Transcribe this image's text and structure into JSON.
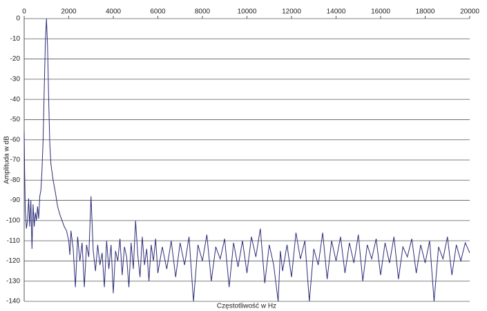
{
  "chart_data": {
    "type": "line",
    "x_label": "Częstotliwość w Hz",
    "y_label": "Amplituda w dB",
    "xlim": [
      0,
      20000
    ],
    "xticks": [
      0,
      2000,
      4000,
      6000,
      8000,
      10000,
      12000,
      14000,
      16000,
      18000,
      20000
    ],
    "ylim": [
      -140,
      0
    ],
    "yticks": [
      0,
      -10,
      -20,
      -30,
      -40,
      -50,
      -60,
      -70,
      -80,
      -90,
      -100,
      -110,
      -120,
      -130,
      -140
    ],
    "grid": true,
    "x": [
      0,
      20,
      50,
      100,
      150,
      200,
      250,
      300,
      350,
      400,
      450,
      500,
      550,
      600,
      650,
      700,
      750,
      800,
      850,
      900,
      950,
      1000,
      1050,
      1100,
      1150,
      1200,
      1300,
      1400,
      1500,
      1600,
      1700,
      1800,
      1900,
      2000,
      2050,
      2100,
      2200,
      2300,
      2400,
      2500,
      2600,
      2700,
      2800,
      2900,
      3000,
      3100,
      3200,
      3300,
      3400,
      3500,
      3600,
      3700,
      3800,
      3900,
      4000,
      4100,
      4200,
      4300,
      4400,
      4500,
      4600,
      4700,
      4800,
      4900,
      5000,
      5100,
      5200,
      5300,
      5400,
      5500,
      5600,
      5700,
      5800,
      5900,
      6000,
      6200,
      6400,
      6600,
      6800,
      7000,
      7200,
      7400,
      7600,
      7800,
      8000,
      8200,
      8400,
      8600,
      8800,
      9000,
      9200,
      9400,
      9600,
      9800,
      10000,
      10200,
      10400,
      10600,
      10800,
      11000,
      11200,
      11400,
      11500,
      11600,
      11800,
      12000,
      12200,
      12400,
      12600,
      12800,
      13000,
      13200,
      13400,
      13600,
      13800,
      14000,
      14200,
      14400,
      14600,
      14800,
      15000,
      15200,
      15400,
      15600,
      15800,
      16000,
      16200,
      16400,
      16600,
      16800,
      17000,
      17200,
      17400,
      17600,
      17800,
      18000,
      18200,
      18400,
      18600,
      18800,
      19000,
      19200,
      19400,
      19600,
      19800,
      20000
    ],
    "series": [
      {
        "color": "#2a2a78",
        "values": [
          -56,
          -75,
          -95,
          -104,
          -100,
          -89,
          -103,
          -90,
          -114,
          -92,
          -103,
          -96,
          -100,
          -93,
          -99,
          -88,
          -85,
          -75,
          -60,
          -35,
          -12,
          0,
          -14,
          -40,
          -62,
          -72,
          -80,
          -86,
          -93,
          -97,
          -100,
          -103,
          -105,
          -110,
          -117,
          -105,
          -114,
          -133,
          -108,
          -120,
          -111,
          -133,
          -112,
          -118,
          -88,
          -115,
          -125,
          -112,
          -122,
          -116,
          -133,
          -110,
          -124,
          -112,
          -136,
          -115,
          -120,
          -109,
          -127,
          -113,
          -118,
          -133,
          -111,
          -124,
          -100,
          -117,
          -128,
          -108,
          -122,
          -114,
          -130,
          -112,
          -120,
          -109,
          -126,
          -113,
          -124,
          -110,
          -128,
          -111,
          -122,
          -108,
          -140,
          -112,
          -120,
          -107,
          -130,
          -113,
          -119,
          -109,
          -133,
          -111,
          -123,
          -110,
          -126,
          -108,
          -118,
          -104,
          -131,
          -112,
          -122,
          -140,
          -115,
          -125,
          -112,
          -128,
          -106,
          -119,
          -110,
          -140,
          -114,
          -122,
          -106,
          -129,
          -110,
          -120,
          -108,
          -126,
          -111,
          -121,
          -107,
          -130,
          -112,
          -119,
          -109,
          -127,
          -111,
          -121,
          -108,
          -129,
          -113,
          -118,
          -109,
          -126,
          -112,
          -121,
          -110,
          -140,
          -113,
          -119,
          -108,
          -127,
          -112,
          -120,
          -111,
          -116
        ]
      }
    ]
  }
}
